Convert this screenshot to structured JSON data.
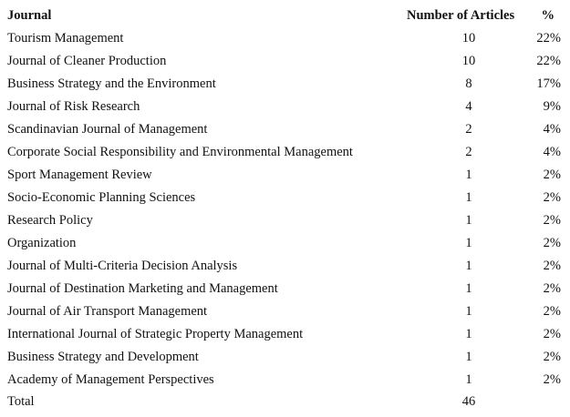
{
  "table": {
    "header": [
      "Journal",
      "Number of Articles",
      "%"
    ],
    "rows": [
      [
        "Tourism Management",
        "10",
        "22%"
      ],
      [
        "Journal of Cleaner Production",
        "10",
        "22%"
      ],
      [
        "Business Strategy and the Environment",
        "8",
        "17%"
      ],
      [
        "Journal of Risk Research",
        "4",
        "9%"
      ],
      [
        "Scandinavian Journal of Management",
        "2",
        "4%"
      ],
      [
        "Corporate Social Responsibility and Environmental Management",
        "2",
        "4%"
      ],
      [
        "Sport Management Review",
        "1",
        "2%"
      ],
      [
        "Socio-Economic Planning Sciences",
        "1",
        "2%"
      ],
      [
        "Research Policy",
        "1",
        "2%"
      ],
      [
        "Organization",
        "1",
        "2%"
      ],
      [
        "Journal of Multi-Criteria Decision Analysis",
        "1",
        "2%"
      ],
      [
        "Journal of Destination Marketing and Management",
        "1",
        "2%"
      ],
      [
        "Journal of Air Transport Management",
        "1",
        "2%"
      ],
      [
        "International Journal of Strategic Property Management",
        "1",
        "2%"
      ],
      [
        "Business Strategy and Development",
        "1",
        "2%"
      ],
      [
        "Academy of Management Perspectives",
        "1",
        "2%"
      ]
    ],
    "total": [
      "Total",
      "46"
    ]
  }
}
